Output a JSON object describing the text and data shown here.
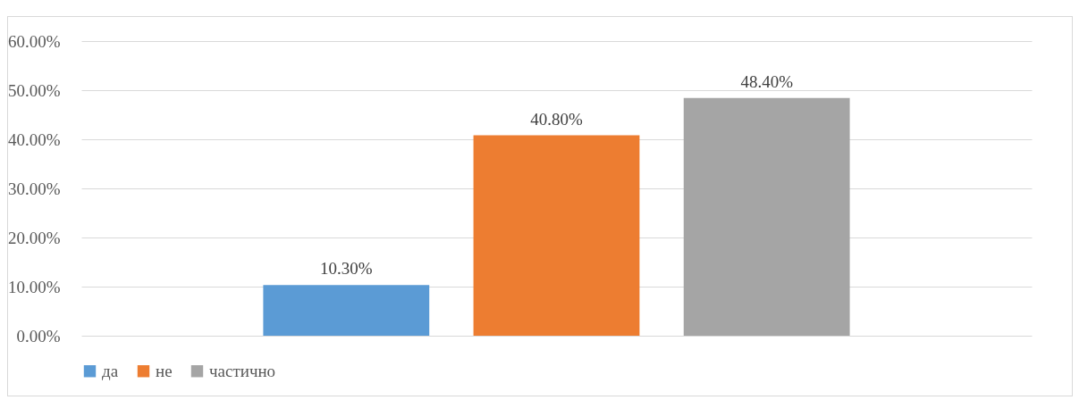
{
  "chart_data": {
    "type": "bar",
    "categories": [
      null
    ],
    "series": [
      {
        "name": "да",
        "color": "#5b9bd5",
        "values": [
          10.3
        ],
        "value_labels": [
          "10.30%"
        ]
      },
      {
        "name": "не",
        "color": "#ed7d31",
        "values": [
          40.8
        ],
        "value_labels": [
          "40.80%"
        ]
      },
      {
        "name": "частично",
        "color": "#a5a5a5",
        "values": [
          48.4
        ],
        "value_labels": [
          "48.40%"
        ]
      }
    ],
    "ylim": [
      0,
      60
    ],
    "yticks": [
      {
        "value": 0,
        "label": "0.00%"
      },
      {
        "value": 10,
        "label": "10.00%"
      },
      {
        "value": 20,
        "label": "20.00%"
      },
      {
        "value": 30,
        "label": "30.00%"
      },
      {
        "value": 40,
        "label": "40.00%"
      },
      {
        "value": 50,
        "label": "50.00%"
      },
      {
        "value": 60,
        "label": "60.00%"
      }
    ],
    "grid": "y",
    "legend": "bottom"
  }
}
